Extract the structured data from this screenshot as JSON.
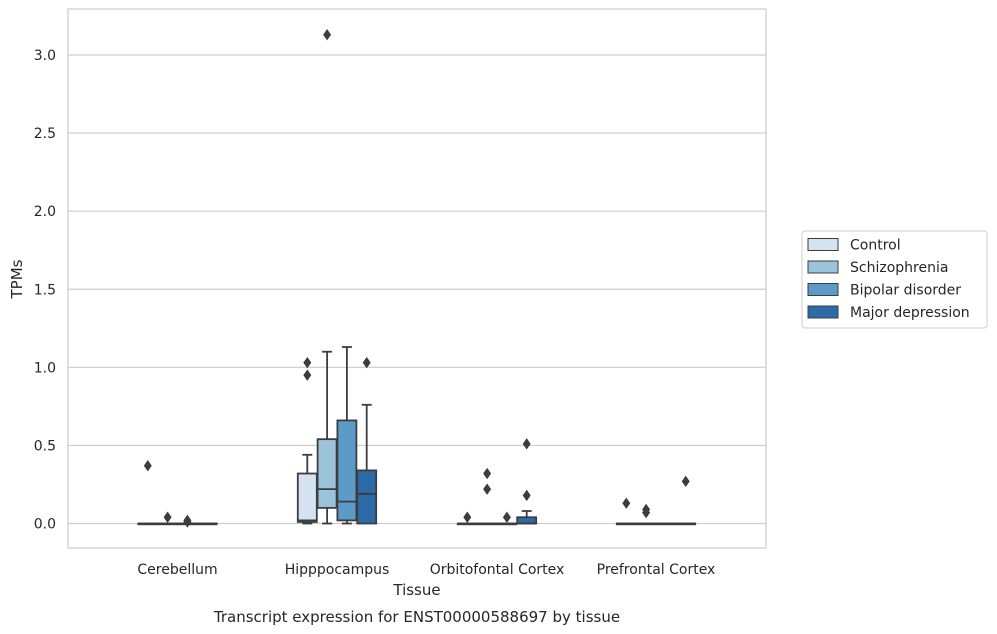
{
  "chart_data": {
    "type": "box",
    "title": "",
    "xlabel": "Tissue",
    "ylabel": "TPMs",
    "caption": "Transcript expression for ENST00000588697 by tissue",
    "ylim": [
      -0.15,
      3.3
    ],
    "yticks": [
      "0.0",
      "0.5",
      "1.0",
      "1.5",
      "2.0",
      "2.5",
      "3.0"
    ],
    "grid": "horizontal",
    "legend_position": "right",
    "categories": [
      "Cerebellum",
      "Hipppocampus",
      "Orbitofontal Cortex",
      "Prefrontal Cortex"
    ],
    "series": [
      {
        "name": "Control",
        "color": "#d4e3f2",
        "boxes": [
          {
            "min": 0,
            "q1": 0,
            "median": 0,
            "q3": 0,
            "max": 0,
            "outliers": [
              0.37
            ]
          },
          {
            "min": 0,
            "q1": 0.01,
            "median": 0.02,
            "q3": 0.32,
            "max": 0.44,
            "outliers": [
              0.95,
              1.03
            ]
          },
          {
            "min": 0,
            "q1": 0,
            "median": 0,
            "q3": 0,
            "max": 0,
            "outliers": [
              0.04
            ]
          },
          {
            "min": 0,
            "q1": 0,
            "median": 0,
            "q3": 0,
            "max": 0,
            "outliers": [
              0.13
            ]
          }
        ]
      },
      {
        "name": "Schizophrenia",
        "color": "#9bc3dc",
        "boxes": [
          {
            "min": 0,
            "q1": 0,
            "median": 0,
            "q3": 0,
            "max": 0,
            "outliers": [
              0.04
            ]
          },
          {
            "min": 0,
            "q1": 0.1,
            "median": 0.22,
            "q3": 0.54,
            "max": 1.1,
            "outliers": [
              3.13
            ]
          },
          {
            "min": 0,
            "q1": 0,
            "median": 0,
            "q3": 0,
            "max": 0,
            "outliers": [
              0.22,
              0.32
            ]
          },
          {
            "min": 0,
            "q1": 0,
            "median": 0,
            "q3": 0,
            "max": 0,
            "outliers": [
              0.07,
              0.09
            ]
          }
        ]
      },
      {
        "name": "Bipolar disorder",
        "color": "#5b9bc8",
        "boxes": [
          {
            "min": 0,
            "q1": 0,
            "median": 0,
            "q3": 0,
            "max": 0,
            "outliers": [
              0.01,
              0.02
            ]
          },
          {
            "min": 0,
            "q1": 0.02,
            "median": 0.14,
            "q3": 0.66,
            "max": 1.13,
            "outliers": []
          },
          {
            "min": 0,
            "q1": 0,
            "median": 0,
            "q3": 0,
            "max": 0,
            "outliers": [
              0.04
            ]
          },
          {
            "min": 0,
            "q1": 0,
            "median": 0,
            "q3": 0,
            "max": 0,
            "outliers": []
          }
        ]
      },
      {
        "name": "Major depression",
        "color": "#2c6ba8",
        "boxes": [
          {
            "min": 0,
            "q1": 0,
            "median": 0,
            "q3": 0,
            "max": 0,
            "outliers": []
          },
          {
            "min": 0,
            "q1": 0,
            "median": 0.19,
            "q3": 0.34,
            "max": 0.76,
            "outliers": [
              1.03
            ]
          },
          {
            "min": 0,
            "q1": 0,
            "median": 0,
            "q3": 0.04,
            "max": 0.08,
            "outliers": [
              0.18,
              0.51
            ]
          },
          {
            "min": 0,
            "q1": 0,
            "median": 0,
            "q3": 0,
            "max": 0,
            "outliers": [
              0.27
            ]
          }
        ]
      }
    ]
  }
}
